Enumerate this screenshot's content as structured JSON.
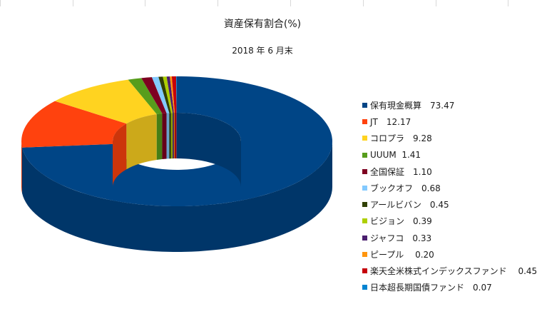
{
  "chart_data": {
    "type": "pie",
    "variant": "3d-doughnut",
    "title": "資産保有割合(%)",
    "subtitle": "2018 年 6 月末",
    "legend_position": "right",
    "categories": [
      "保有現金概算",
      "JT",
      "コロプラ",
      "UUUM",
      "全国保証",
      "ブックオフ",
      "アールビバン",
      "ビジョン",
      "ジャフコ",
      "ピープル",
      "楽天全米株式インデックスファンド",
      "日本超長期国債ファンド"
    ],
    "values": [
      73.47,
      12.17,
      9.28,
      1.41,
      1.1,
      0.68,
      0.45,
      0.39,
      0.33,
      0.2,
      0.45,
      0.07
    ],
    "labels": [
      "保有現金概算　73.47",
      "JT　12.17",
      "コロプラ　9.28",
      "UUUM  1.41",
      "全国保証　1.10",
      "ブックオフ　0.68",
      "アールビバン　0.45",
      "ビジョン　0.39",
      "ジャフコ　0.33",
      "ピープル　 0.20",
      "楽天全米株式インデックスファンド　 0.45",
      "日本超長期国債ファンド　0.07"
    ],
    "colors": [
      "#004586",
      "#ff420e",
      "#ffd320",
      "#579d1c",
      "#7e0021",
      "#83caff",
      "#314004",
      "#aecf00",
      "#4b1f6f",
      "#ff950e",
      "#c5000b",
      "#0084d1"
    ]
  }
}
